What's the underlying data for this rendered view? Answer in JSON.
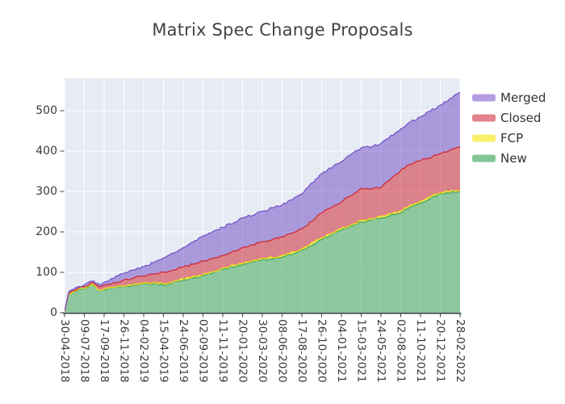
{
  "title": "Matrix Spec Change Proposals",
  "chart_data": {
    "type": "area",
    "stacked": true,
    "title": "Matrix Spec Change Proposals",
    "xlabel": "",
    "ylabel": "",
    "grid": true,
    "legend_position": "right-top-outside",
    "plot_background": "#e6ebf4",
    "grid_color": "#ffffff",
    "axis_line_color": "#3b4147",
    "tick_label_color": "#3b3b3b",
    "ylim": [
      0,
      580
    ],
    "y_ticks": [
      0,
      100,
      200,
      300,
      400,
      500
    ],
    "x_tick_labels": [
      "30-04-2018",
      "09-07-2018",
      "17-09-2018",
      "26-11-2018",
      "04-02-2019",
      "15-04-2019",
      "24-06-2019",
      "02-09-2019",
      "11-11-2019",
      "20-01-2020",
      "30-03-2020",
      "08-06-2020",
      "17-08-2020",
      "26-10-2020",
      "04-01-2021",
      "15-03-2021",
      "24-05-2021",
      "02-08-2021",
      "11-10-2021",
      "20-12-2021",
      "28-02-2022"
    ],
    "legend": [
      {
        "name": "Merged",
        "swatch": "#b49de2",
        "base": "#7655c7"
      },
      {
        "name": "Closed",
        "swatch": "#e4838b",
        "base": "#cf2b35"
      },
      {
        "name": "FCP",
        "swatch": "#f9f06a",
        "base": "#f2dc16"
      },
      {
        "name": "New",
        "swatch": "#82c796",
        "base": "#43aa56"
      }
    ],
    "series_order_bottom_to_top": [
      "New",
      "FCP",
      "Closed",
      "Merged"
    ],
    "fill_alpha": 0.55,
    "points_columns": [
      "date",
      "new",
      "fcp",
      "closed",
      "merged"
    ],
    "points": [
      [
        "30-04-2018",
        2,
        0,
        1,
        1
      ],
      [
        "14-05-2018",
        44,
        1,
        2,
        3
      ],
      [
        "18-06-2018",
        57,
        1,
        3,
        4
      ],
      [
        "09-07-2018",
        60,
        1,
        3,
        5
      ],
      [
        "10-08-2018",
        70,
        1,
        3,
        5
      ],
      [
        "31-08-2018",
        54,
        1,
        9,
        5
      ],
      [
        "17-09-2018",
        57,
        1,
        10,
        7
      ],
      [
        "15-10-2018",
        61,
        1,
        10,
        13
      ],
      [
        "26-11-2018",
        64,
        2,
        15,
        16
      ],
      [
        "04-02-2019",
        71,
        2,
        18,
        23
      ],
      [
        "11-03-2019",
        72,
        2,
        21,
        29
      ],
      [
        "15-04-2019",
        68,
        3,
        29,
        35
      ],
      [
        "24-06-2019",
        81,
        3,
        29,
        48
      ],
      [
        "02-09-2019",
        91,
        3,
        33,
        63
      ],
      [
        "11-11-2019",
        107,
        3,
        31,
        70
      ],
      [
        "20-01-2020",
        119,
        3,
        39,
        73
      ],
      [
        "30-03-2020",
        131,
        3,
        41,
        76
      ],
      [
        "08-06-2020",
        137,
        4,
        46,
        80
      ],
      [
        "17-08-2020",
        154,
        4,
        49,
        87
      ],
      [
        "26-10-2020",
        181,
        4,
        62,
        97
      ],
      [
        "04-01-2021",
        204,
        4,
        66,
        100
      ],
      [
        "15-03-2021",
        224,
        4,
        80,
        100
      ],
      [
        "12-04-2021",
        228,
        4,
        74,
        104
      ],
      [
        "24-05-2021",
        234,
        4,
        72,
        109
      ],
      [
        "02-08-2021",
        248,
        4,
        100,
        103
      ],
      [
        "30-08-2021",
        259,
        4,
        103,
        104
      ],
      [
        "11-10-2021",
        272,
        4,
        100,
        108
      ],
      [
        "20-12-2021",
        294,
        3,
        97,
        120
      ],
      [
        "28-02-2022",
        301,
        3,
        107,
        134
      ]
    ]
  }
}
